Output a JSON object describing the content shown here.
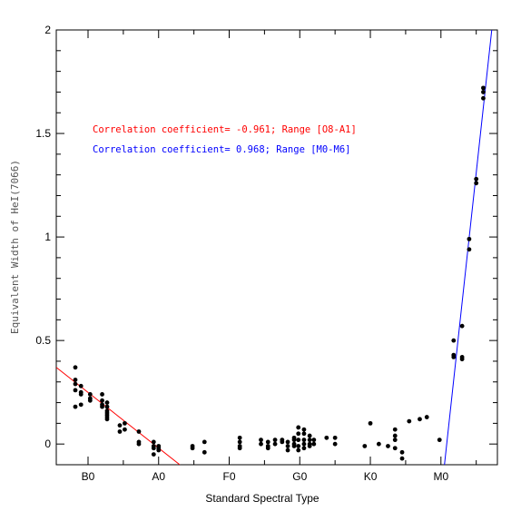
{
  "chart_data": {
    "type": "scatter",
    "title": "",
    "xlabel": "Standard Spectral Type",
    "ylabel": "Equivalent Width of HeI(7066)",
    "xlim": [
      -0.45,
      5.8
    ],
    "ylim": [
      -0.1,
      2.0
    ],
    "grid": false,
    "x_ticks": [
      {
        "value": 0,
        "label": "B0"
      },
      {
        "value": 1,
        "label": "A0"
      },
      {
        "value": 2,
        "label": "F0"
      },
      {
        "value": 3,
        "label": "G0"
      },
      {
        "value": 4,
        "label": "K0"
      },
      {
        "value": 5,
        "label": "M0"
      }
    ],
    "y_ticks": [
      {
        "value": 0,
        "label": "0"
      },
      {
        "value": 0.5,
        "label": "0.5"
      },
      {
        "value": 1,
        "label": "1"
      },
      {
        "value": 1.5,
        "label": "1.5"
      },
      {
        "value": 2,
        "label": "2"
      }
    ],
    "points": [
      [
        -0.18,
        0.37
      ],
      [
        -0.18,
        0.31
      ],
      [
        -0.18,
        0.29
      ],
      [
        -0.18,
        0.26
      ],
      [
        -0.18,
        0.18
      ],
      [
        -0.1,
        0.28
      ],
      [
        -0.1,
        0.25
      ],
      [
        -0.1,
        0.24
      ],
      [
        -0.1,
        0.19
      ],
      [
        0.03,
        0.24
      ],
      [
        0.03,
        0.22
      ],
      [
        0.03,
        0.21
      ],
      [
        0.2,
        0.24
      ],
      [
        0.2,
        0.21
      ],
      [
        0.2,
        0.19
      ],
      [
        0.2,
        0.18
      ],
      [
        0.27,
        0.2
      ],
      [
        0.27,
        0.18
      ],
      [
        0.27,
        0.16
      ],
      [
        0.27,
        0.15
      ],
      [
        0.27,
        0.14
      ],
      [
        0.27,
        0.13
      ],
      [
        0.27,
        0.12
      ],
      [
        0.45,
        0.09
      ],
      [
        0.45,
        0.06
      ],
      [
        0.52,
        0.1
      ],
      [
        0.52,
        0.07
      ],
      [
        0.72,
        0.06
      ],
      [
        0.72,
        0.01
      ],
      [
        0.72,
        0.0
      ],
      [
        0.93,
        0.01
      ],
      [
        0.93,
        -0.01
      ],
      [
        0.93,
        -0.02
      ],
      [
        0.93,
        -0.05
      ],
      [
        1.0,
        -0.01
      ],
      [
        1.0,
        -0.02
      ],
      [
        1.0,
        -0.03
      ],
      [
        1.48,
        -0.01
      ],
      [
        1.48,
        -0.02
      ],
      [
        1.65,
        0.01
      ],
      [
        1.65,
        -0.04
      ],
      [
        2.15,
        0.03
      ],
      [
        2.15,
        0.01
      ],
      [
        2.15,
        -0.01
      ],
      [
        2.15,
        -0.02
      ],
      [
        2.45,
        0.02
      ],
      [
        2.45,
        0.0
      ],
      [
        2.55,
        0.01
      ],
      [
        2.55,
        -0.01
      ],
      [
        2.55,
        -0.02
      ],
      [
        2.65,
        0.02
      ],
      [
        2.65,
        0.0
      ],
      [
        2.75,
        0.02
      ],
      [
        2.75,
        0.01
      ],
      [
        2.83,
        0.01
      ],
      [
        2.83,
        -0.01
      ],
      [
        2.83,
        -0.03
      ],
      [
        2.92,
        0.03
      ],
      [
        2.92,
        0.02
      ],
      [
        2.92,
        0.0
      ],
      [
        2.92,
        -0.01
      ],
      [
        2.98,
        0.08
      ],
      [
        2.98,
        0.05
      ],
      [
        2.98,
        0.02
      ],
      [
        2.98,
        -0.01
      ],
      [
        2.98,
        -0.03
      ],
      [
        3.06,
        0.07
      ],
      [
        3.06,
        0.05
      ],
      [
        3.06,
        0.02
      ],
      [
        3.06,
        0.0
      ],
      [
        3.06,
        -0.02
      ],
      [
        3.14,
        0.04
      ],
      [
        3.14,
        0.02
      ],
      [
        3.14,
        0.0
      ],
      [
        3.14,
        -0.01
      ],
      [
        3.2,
        0.02
      ],
      [
        3.2,
        0.0
      ],
      [
        3.38,
        0.03
      ],
      [
        3.5,
        0.03
      ],
      [
        3.5,
        0.0
      ],
      [
        3.92,
        -0.01
      ],
      [
        4.0,
        0.1
      ],
      [
        4.12,
        0.0
      ],
      [
        4.25,
        -0.01
      ],
      [
        4.35,
        0.07
      ],
      [
        4.35,
        0.04
      ],
      [
        4.35,
        0.02
      ],
      [
        4.35,
        -0.02
      ],
      [
        4.45,
        -0.04
      ],
      [
        4.45,
        -0.07
      ],
      [
        4.55,
        0.11
      ],
      [
        4.7,
        0.12
      ],
      [
        4.8,
        0.13
      ],
      [
        4.98,
        0.02
      ],
      [
        5.18,
        0.5
      ],
      [
        5.18,
        0.43
      ],
      [
        5.18,
        0.42
      ],
      [
        5.3,
        0.57
      ],
      [
        5.3,
        0.42
      ],
      [
        5.3,
        0.41
      ],
      [
        5.4,
        0.99
      ],
      [
        5.4,
        0.94
      ],
      [
        5.5,
        1.28
      ],
      [
        5.5,
        1.26
      ],
      [
        5.6,
        1.72
      ],
      [
        5.6,
        1.7
      ],
      [
        5.6,
        1.67
      ]
    ],
    "fit_lines": [
      {
        "color": "#ff0000",
        "x": [
          -0.45,
          1.3
        ],
        "y": [
          0.37,
          -0.1
        ]
      },
      {
        "color": "#0000ff",
        "x": [
          5.05,
          5.72
        ],
        "y": [
          -0.1,
          2.0
        ]
      }
    ],
    "annotations": [
      {
        "text": "Correlation coefficient= -0.961; Range [O8-A1]",
        "color": "#ff0000"
      },
      {
        "text": "Correlation coefficient= 0.968; Range [M0-M6]",
        "color": "#0000ff"
      }
    ]
  }
}
